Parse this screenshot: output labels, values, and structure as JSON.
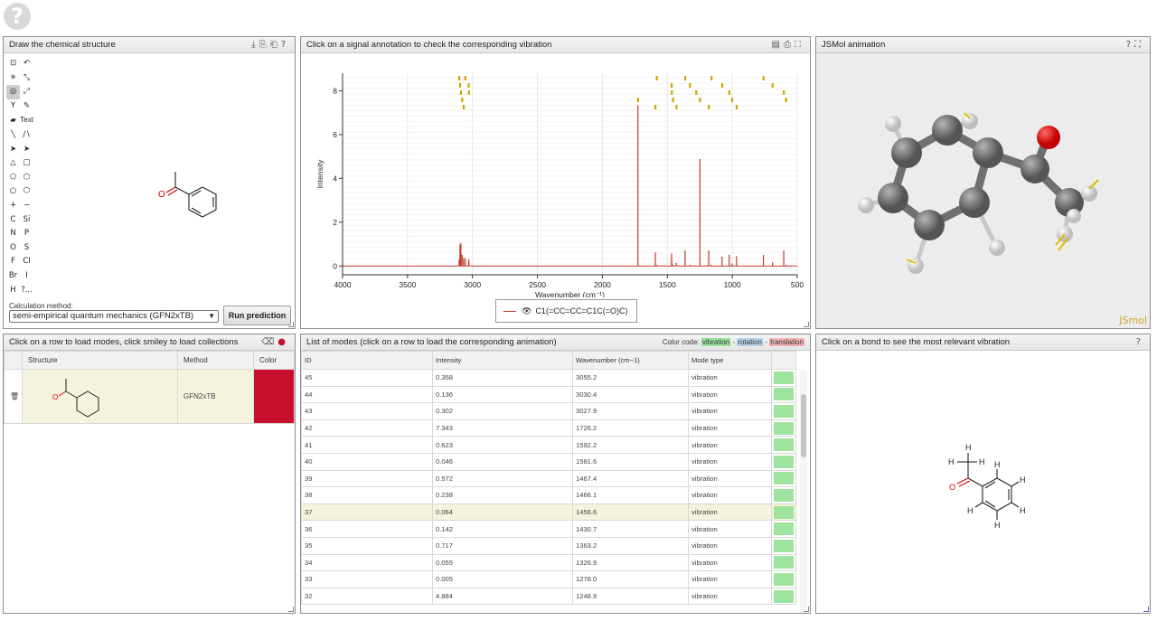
{
  "help": {
    "symbol": "?"
  },
  "editor": {
    "title": "Draw the chemical structure",
    "tools": [
      "⊡",
      "↶",
      "✳",
      "⤡",
      "◎",
      "⤢",
      "Y",
      "✎",
      "▰",
      "Text",
      "╲",
      "∕∖",
      "➤",
      "➤",
      "△",
      "□",
      "⬠",
      "⬡",
      "○",
      "⬡",
      "+",
      "−",
      "C",
      "Si",
      "N",
      "P",
      "O",
      "S",
      "F",
      "Cl",
      "Br",
      "I",
      "H",
      "?..."
    ],
    "calc_label": "Calculation method:",
    "calc_value": "semi-empirical quantum mechanics (GFN2xTB)",
    "run_label": "Run prediction",
    "atom_label": "O",
    "icons": [
      "download-icon",
      "copy-icon",
      "paste-icon",
      "help-icon"
    ]
  },
  "spectrum": {
    "title": "Click on a signal annotation to check the corresponding vibration",
    "xlabel": "Wavenumber (cm⁻¹)",
    "ylabel": "Intensity",
    "legend": "C1(=CC=CC=C1C(=O)C)",
    "legend_icon": "👁",
    "icons": [
      "export-icon",
      "print-icon",
      "fullscreen-icon"
    ]
  },
  "chart_data": {
    "type": "bar",
    "title": "",
    "xlabel": "Wavenumber (cm⁻¹)",
    "ylabel": "Intensity",
    "xlim": [
      4000,
      500
    ],
    "ylim": [
      -0.4,
      8.8
    ],
    "xticks": [
      4000,
      3500,
      3000,
      2500,
      2000,
      1500,
      1000,
      500
    ],
    "yticks": [
      0,
      2,
      4,
      6,
      8
    ],
    "x": [
      3102.5,
      3096.2,
      3089.5,
      3079.8,
      3068.1,
      3055.2,
      3030.4,
      3027.9,
      1726.2,
      1592.2,
      1581.6,
      1467.4,
      1466.1,
      1456.6,
      1430.7,
      1363.2,
      1326.9,
      1278.0,
      1248.9,
      1181.2,
      1160.4,
      1078.9,
      1023.7,
      1001.5,
      967.3,
      760.2,
      690.5,
      603.8,
      587.1
    ],
    "values": [
      0.31,
      0.98,
      1.05,
      0.52,
      0.36,
      0.358,
      0.136,
      0.302,
      7.343,
      0.623,
      0.046,
      0.572,
      0.238,
      0.064,
      0.142,
      0.717,
      0.055,
      0.005,
      4.884,
      0.72,
      0.06,
      0.43,
      0.52,
      0.12,
      0.45,
      0.51,
      0.16,
      0.71,
      0.05
    ],
    "series": [
      {
        "name": "C1(=CC=CC=C1C(=O)C)",
        "color": "#c0392b"
      }
    ]
  },
  "jsmol": {
    "title": "JSMol animation",
    "logo": "JSmol",
    "icons": [
      "help-icon",
      "fullscreen-icon"
    ]
  },
  "collections": {
    "title": "Click on a row to load modes, click smiley to load collections",
    "headers": [
      "Structure",
      "Method",
      "Color"
    ],
    "rows": [
      {
        "method": "GFN2xTB",
        "color": "#c8102e"
      }
    ],
    "atom_label": "O",
    "icons": [
      "eraser-icon",
      "smiley-icon",
      "trash-icon"
    ]
  },
  "modes": {
    "title": "List of modes (click on a row to load the corresponding animation)",
    "color_code_label": "Color code:",
    "vibration_label": "vibration",
    "rotation_label": "rotation",
    "translation_label": "translation",
    "headers": [
      "ID",
      "Intensity",
      "Wavenumber (cm−1)",
      "Mode type"
    ],
    "rows": [
      {
        "id": "45",
        "intensity": "0.358",
        "wavenumber": "3055.2",
        "type": "vibration"
      },
      {
        "id": "44",
        "intensity": "0.136",
        "wavenumber": "3030.4",
        "type": "vibration"
      },
      {
        "id": "43",
        "intensity": "0.302",
        "wavenumber": "3027.9",
        "type": "vibration"
      },
      {
        "id": "42",
        "intensity": "7.343",
        "wavenumber": "1726.2",
        "type": "vibration"
      },
      {
        "id": "41",
        "intensity": "0.623",
        "wavenumber": "1592.2",
        "type": "vibration"
      },
      {
        "id": "40",
        "intensity": "0.046",
        "wavenumber": "1581.6",
        "type": "vibration"
      },
      {
        "id": "39",
        "intensity": "0.572",
        "wavenumber": "1467.4",
        "type": "vibration"
      },
      {
        "id": "38",
        "intensity": "0.238",
        "wavenumber": "1466.1",
        "type": "vibration"
      },
      {
        "id": "37",
        "intensity": "0.064",
        "wavenumber": "1456.6",
        "type": "vibration",
        "highlight": true
      },
      {
        "id": "36",
        "intensity": "0.142",
        "wavenumber": "1430.7",
        "type": "vibration"
      },
      {
        "id": "35",
        "intensity": "0.717",
        "wavenumber": "1363.2",
        "type": "vibration"
      },
      {
        "id": "34",
        "intensity": "0.055",
        "wavenumber": "1326.9",
        "type": "vibration"
      },
      {
        "id": "33",
        "intensity": "0.005",
        "wavenumber": "1278.0",
        "type": "vibration"
      },
      {
        "id": "32",
        "intensity": "4.884",
        "wavenumber": "1248.9",
        "type": "vibration"
      }
    ]
  },
  "bond": {
    "title": "Click on a bond to see the most relevant vibration",
    "atoms": {
      "h": "H",
      "o": "O"
    },
    "icons": [
      "help-icon"
    ]
  }
}
